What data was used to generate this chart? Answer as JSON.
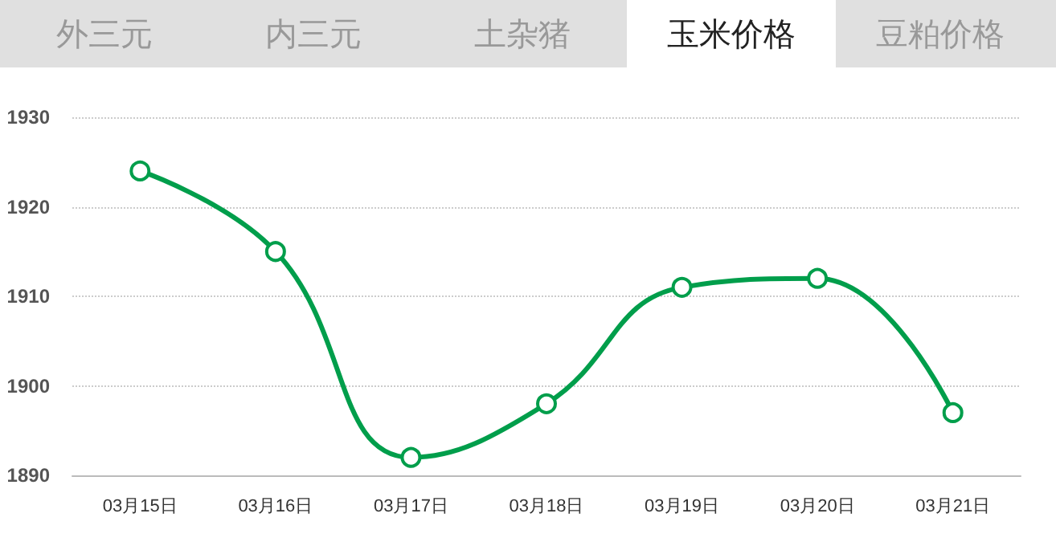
{
  "chart_data": {
    "type": "line",
    "title": "玉米价格",
    "annotations": [
      "外三元",
      "内三元",
      "土杂猪",
      "豆粕价格"
    ],
    "categories": [
      "03月15日",
      "03月16日",
      "03月17日",
      "03月18日",
      "03月19日",
      "03月20日",
      "03月21日"
    ],
    "series": [
      {
        "color": "#009e4b",
        "values": [
          1924,
          1915,
          1892,
          1898,
          1911,
          1912,
          1897
        ]
      }
    ],
    "ylim": [
      1890,
      1930
    ],
    "yticks": [
      1890,
      1900,
      1910,
      1920,
      1930
    ],
    "grid": "y",
    "marker": "circle",
    "line_style": "solid"
  }
}
